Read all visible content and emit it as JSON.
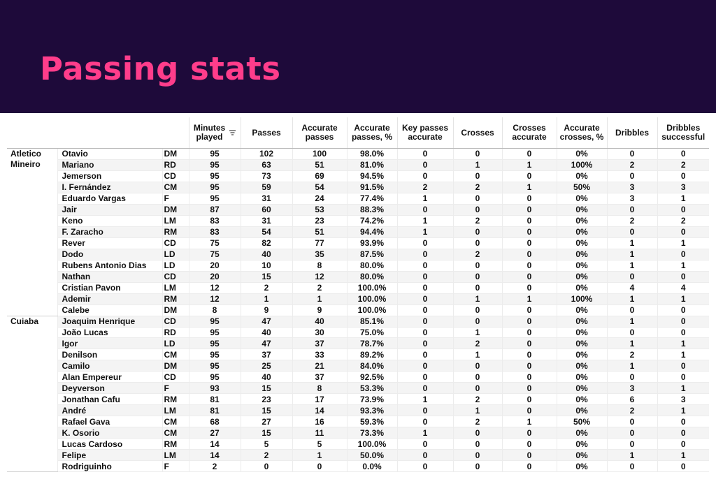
{
  "title": "Passing stats",
  "colors": {
    "banner": "#1e0a3a",
    "title": "#ff3d8b"
  },
  "columns": [
    "Minutes\nplayed",
    "Passes",
    "Accurate\npasses",
    "Accurate\npasses, %",
    "Key passes\naccurate",
    "Crosses",
    "Crosses\naccurate",
    "Accurate\ncrosses, %",
    "Dribbles",
    "Dribbles\nsuccessful"
  ],
  "sort_icon": "sort-icon",
  "teams": [
    {
      "name": "Atletico\nMineiro",
      "players": [
        [
          "Otavio",
          "DM",
          "95",
          "102",
          "100",
          "98.0%",
          "0",
          "0",
          "0",
          "0%",
          "0",
          "0"
        ],
        [
          "Mariano",
          "RD",
          "95",
          "63",
          "51",
          "81.0%",
          "0",
          "1",
          "1",
          "100%",
          "2",
          "2"
        ],
        [
          "Jemerson",
          "CD",
          "95",
          "73",
          "69",
          "94.5%",
          "0",
          "0",
          "0",
          "0%",
          "0",
          "0"
        ],
        [
          "I. Fernández",
          "CM",
          "95",
          "59",
          "54",
          "91.5%",
          "2",
          "2",
          "1",
          "50%",
          "3",
          "3"
        ],
        [
          "Eduardo Vargas",
          "F",
          "95",
          "31",
          "24",
          "77.4%",
          "1",
          "0",
          "0",
          "0%",
          "3",
          "1"
        ],
        [
          "Jair",
          "DM",
          "87",
          "60",
          "53",
          "88.3%",
          "0",
          "0",
          "0",
          "0%",
          "0",
          "0"
        ],
        [
          "Keno",
          "LM",
          "83",
          "31",
          "23",
          "74.2%",
          "1",
          "2",
          "0",
          "0%",
          "2",
          "2"
        ],
        [
          "F. Zaracho",
          "RM",
          "83",
          "54",
          "51",
          "94.4%",
          "1",
          "0",
          "0",
          "0%",
          "0",
          "0"
        ],
        [
          "Rever",
          "CD",
          "75",
          "82",
          "77",
          "93.9%",
          "0",
          "0",
          "0",
          "0%",
          "1",
          "1"
        ],
        [
          "Dodo",
          "LD",
          "75",
          "40",
          "35",
          "87.5%",
          "0",
          "2",
          "0",
          "0%",
          "1",
          "0"
        ],
        [
          "Rubens Antonio Dias",
          "LD",
          "20",
          "10",
          "8",
          "80.0%",
          "0",
          "0",
          "0",
          "0%",
          "1",
          "1"
        ],
        [
          "Nathan",
          "CD",
          "20",
          "15",
          "12",
          "80.0%",
          "0",
          "0",
          "0",
          "0%",
          "0",
          "0"
        ],
        [
          "Cristian Pavon",
          "LM",
          "12",
          "2",
          "2",
          "100.0%",
          "0",
          "0",
          "0",
          "0%",
          "4",
          "4"
        ],
        [
          "Ademir",
          "RM",
          "12",
          "1",
          "1",
          "100.0%",
          "0",
          "1",
          "1",
          "100%",
          "1",
          "1"
        ],
        [
          "Calebe",
          "DM",
          "8",
          "9",
          "9",
          "100.0%",
          "0",
          "0",
          "0",
          "0%",
          "0",
          "0"
        ]
      ]
    },
    {
      "name": "Cuiaba",
      "players": [
        [
          "Joaquim Henrique",
          "CD",
          "95",
          "47",
          "40",
          "85.1%",
          "0",
          "0",
          "0",
          "0%",
          "1",
          "0"
        ],
        [
          "João Lucas",
          "RD",
          "95",
          "40",
          "30",
          "75.0%",
          "0",
          "1",
          "0",
          "0%",
          "0",
          "0"
        ],
        [
          "Igor",
          "LD",
          "95",
          "47",
          "37",
          "78.7%",
          "0",
          "2",
          "0",
          "0%",
          "1",
          "1"
        ],
        [
          "Denilson",
          "CM",
          "95",
          "37",
          "33",
          "89.2%",
          "0",
          "1",
          "0",
          "0%",
          "2",
          "1"
        ],
        [
          "Camilo",
          "DM",
          "95",
          "25",
          "21",
          "84.0%",
          "0",
          "0",
          "0",
          "0%",
          "1",
          "0"
        ],
        [
          "Alan Empereur",
          "CD",
          "95",
          "40",
          "37",
          "92.5%",
          "0",
          "0",
          "0",
          "0%",
          "0",
          "0"
        ],
        [
          "Deyverson",
          "F",
          "93",
          "15",
          "8",
          "53.3%",
          "0",
          "0",
          "0",
          "0%",
          "3",
          "1"
        ],
        [
          "Jonathan Cafu",
          "RM",
          "81",
          "23",
          "17",
          "73.9%",
          "1",
          "2",
          "0",
          "0%",
          "6",
          "3"
        ],
        [
          "André",
          "LM",
          "81",
          "15",
          "14",
          "93.3%",
          "0",
          "1",
          "0",
          "0%",
          "2",
          "1"
        ],
        [
          "Rafael Gava",
          "CM",
          "68",
          "27",
          "16",
          "59.3%",
          "0",
          "2",
          "1",
          "50%",
          "0",
          "0"
        ],
        [
          "K. Osorio",
          "CM",
          "27",
          "15",
          "11",
          "73.3%",
          "1",
          "0",
          "0",
          "0%",
          "0",
          "0"
        ],
        [
          "Lucas Cardoso",
          "RM",
          "14",
          "5",
          "5",
          "100.0%",
          "0",
          "0",
          "0",
          "0%",
          "0",
          "0"
        ],
        [
          "Felipe",
          "LM",
          "14",
          "2",
          "1",
          "50.0%",
          "0",
          "0",
          "0",
          "0%",
          "1",
          "1"
        ],
        [
          "Rodriguinho",
          "F",
          "2",
          "0",
          "0",
          "0.0%",
          "0",
          "0",
          "0",
          "0%",
          "0",
          "0"
        ]
      ]
    }
  ]
}
